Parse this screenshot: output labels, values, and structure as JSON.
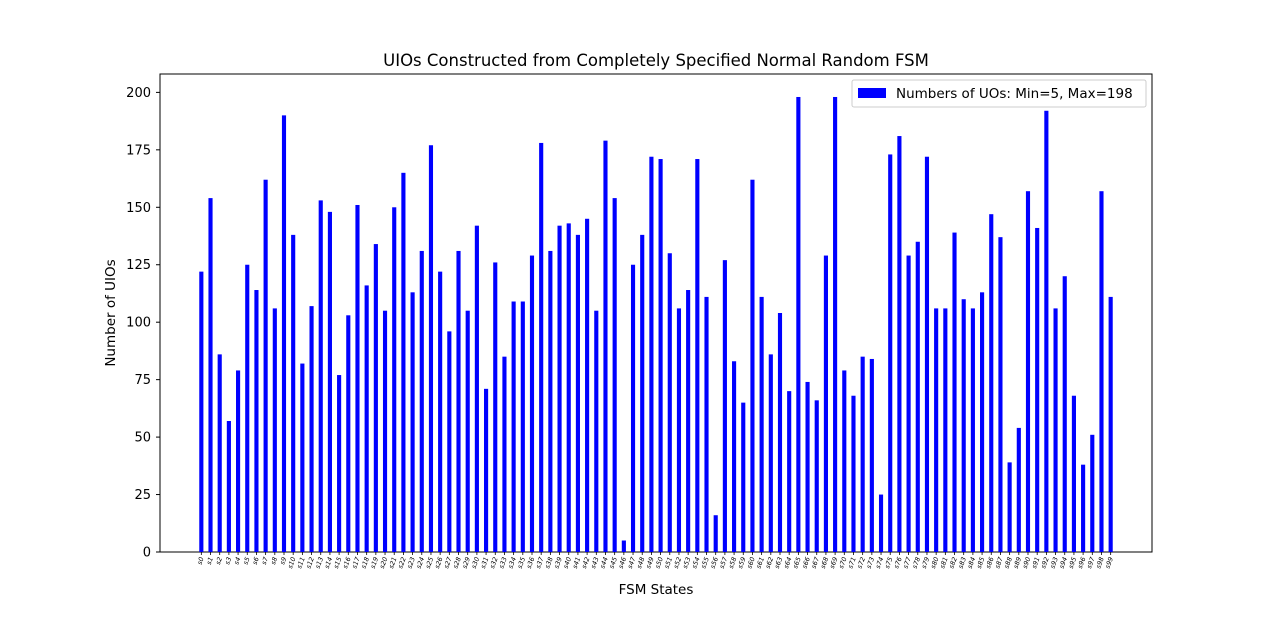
{
  "chart_data": {
    "type": "bar",
    "title": "UIOs Constructed from Completely Specified Normal Random FSM",
    "xlabel": "FSM States",
    "ylabel": "Number of UIOs",
    "ylim": [
      0,
      208
    ],
    "yticks": [
      0,
      25,
      50,
      75,
      100,
      125,
      150,
      175,
      200
    ],
    "grid": false,
    "legend_position": "top-right",
    "bar_color": "#0000ff",
    "categories": [
      "s0",
      "s1",
      "s2",
      "s3",
      "s4",
      "s5",
      "s6",
      "s7",
      "s8",
      "s9",
      "s10",
      "s11",
      "s12",
      "s13",
      "s14",
      "s15",
      "s16",
      "s17",
      "s18",
      "s19",
      "s20",
      "s21",
      "s22",
      "s23",
      "s24",
      "s25",
      "s26",
      "s27",
      "s28",
      "s29",
      "s30",
      "s31",
      "s32",
      "s33",
      "s34",
      "s35",
      "s36",
      "s37",
      "s38",
      "s39",
      "s40",
      "s41",
      "s42",
      "s43",
      "s44",
      "s45",
      "s46",
      "s47",
      "s48",
      "s49",
      "s50",
      "s51",
      "s52",
      "s53",
      "s54",
      "s55",
      "s56",
      "s57",
      "s58",
      "s59",
      "s60",
      "s61",
      "s62",
      "s63",
      "s64",
      "s65",
      "s66",
      "s67",
      "s68",
      "s69",
      "s70",
      "s71",
      "s72",
      "s73",
      "s74",
      "s75",
      "s76",
      "s77",
      "s78",
      "s79",
      "s80",
      "s81",
      "s82",
      "s83",
      "s84",
      "s85",
      "s86",
      "s87",
      "s88",
      "s89",
      "s90",
      "s91",
      "s92",
      "s93",
      "s94",
      "s95",
      "s96",
      "s97",
      "s98",
      "s99"
    ],
    "series": [
      {
        "name": "Numbers of UOs: Min=5, Max=198",
        "values": [
          122,
          154,
          86,
          57,
          79,
          125,
          114,
          162,
          106,
          190,
          138,
          82,
          107,
          153,
          148,
          77,
          103,
          151,
          116,
          134,
          105,
          150,
          165,
          113,
          131,
          177,
          122,
          96,
          131,
          105,
          142,
          71,
          126,
          85,
          109,
          109,
          129,
          178,
          131,
          142,
          143,
          138,
          145,
          105,
          179,
          154,
          5,
          125,
          138,
          172,
          171,
          130,
          106,
          114,
          171,
          111,
          16,
          127,
          83,
          65,
          162,
          111,
          86,
          104,
          70,
          198,
          74,
          66,
          129,
          198,
          79,
          68,
          85,
          84,
          25,
          173,
          181,
          129,
          135,
          172,
          106,
          106,
          139,
          110,
          106,
          113,
          147,
          137,
          39,
          54,
          157,
          141,
          192,
          106,
          120,
          68,
          38,
          51,
          157,
          111
        ]
      }
    ]
  }
}
